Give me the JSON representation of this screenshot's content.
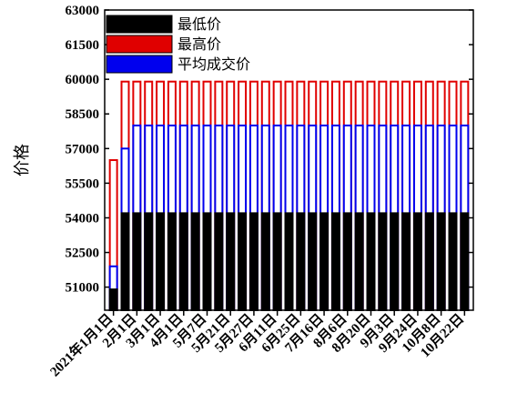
{
  "chart_data": {
    "type": "bar",
    "title": "",
    "xlabel": "",
    "ylabel": "价格",
    "ylim": [
      50000,
      63000
    ],
    "yticks": [
      51000,
      52500,
      54000,
      55500,
      57000,
      58500,
      60000,
      61500,
      63000
    ],
    "ytick_labels": [
      "51000",
      "52500",
      "54000",
      "55500",
      "57000",
      "58500",
      "60000",
      "61500",
      "63000"
    ],
    "xtick_labels": [
      "2021年1月1日",
      "2月1日",
      "3月1日",
      "4月1日",
      "5月7日",
      "5月21日",
      "5月27日",
      "6月11日",
      "6月25日",
      "7月16日",
      "8月6日",
      "8月20日",
      "9月3日",
      "9月24日",
      "10月8日",
      "10月22日"
    ],
    "xtick_positions": [
      0,
      2,
      4,
      6,
      8,
      10,
      12,
      14,
      16,
      18,
      20,
      22,
      24,
      26,
      28,
      30
    ],
    "grid": false,
    "legend_position": "top-left",
    "bar_count": 31,
    "series": [
      {
        "name": "最低价",
        "color": "#000000",
        "values": [
          50900,
          54200,
          54200,
          54200,
          54200,
          54200,
          54200,
          54200,
          54200,
          54200,
          54200,
          54200,
          54200,
          54200,
          54200,
          54200,
          54200,
          54200,
          54200,
          54200,
          54200,
          54200,
          54200,
          54200,
          54200,
          54200,
          54200,
          54200,
          54200,
          54200,
          54200
        ]
      },
      {
        "name": "最高价",
        "color": "#e00000",
        "values": [
          56500,
          59900,
          59900,
          59900,
          59900,
          59900,
          59900,
          59900,
          59900,
          59900,
          59900,
          59900,
          59900,
          59900,
          59900,
          59900,
          59900,
          59900,
          59900,
          59900,
          59900,
          59900,
          59900,
          59900,
          59900,
          59900,
          59900,
          59900,
          59900,
          59900,
          59900
        ]
      },
      {
        "name": "平均成交价",
        "color": "#0000ee",
        "values": [
          51900,
          57000,
          58000,
          58000,
          58000,
          58000,
          58000,
          58000,
          58000,
          58000,
          58000,
          58000,
          58000,
          58000,
          58000,
          58000,
          58000,
          58000,
          58000,
          58000,
          58000,
          58000,
          58000,
          58000,
          58000,
          58000,
          58000,
          58000,
          58000,
          58000,
          58000
        ]
      }
    ]
  }
}
